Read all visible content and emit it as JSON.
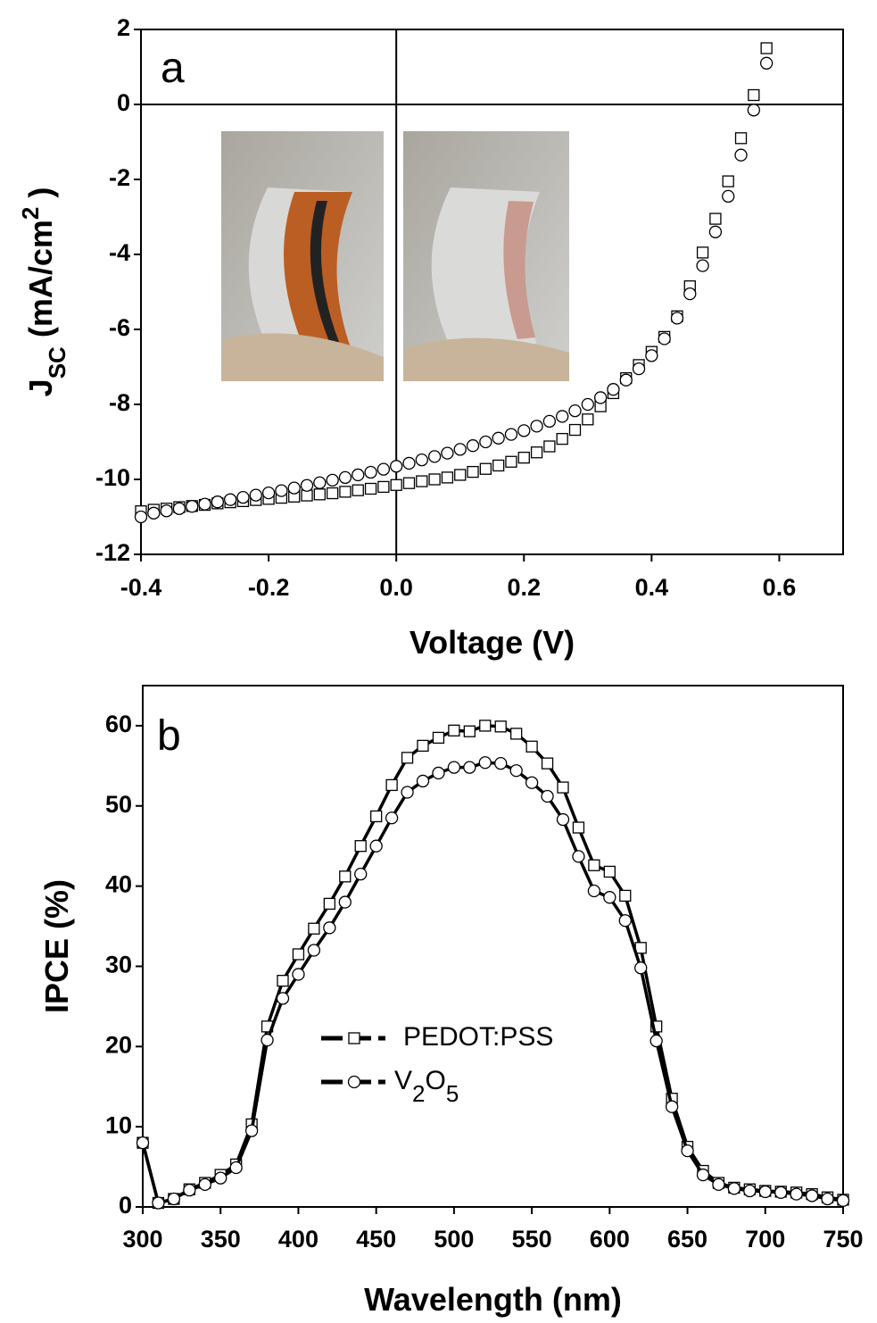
{
  "chart_data": [
    {
      "type": "scatter",
      "panel_label": "a",
      "xlabel": "Voltage (V)",
      "ylabel": [
        "J",
        "SC",
        " (mA/cm",
        "2",
        " )"
      ],
      "xlim": [
        -0.4,
        0.7
      ],
      "ylim": [
        -12,
        2
      ],
      "xticks": [
        -0.4,
        -0.2,
        {
          "value": 0,
          "label": "0.0"
        },
        0.2,
        0.4,
        0.6
      ],
      "yticks": [
        2,
        0,
        -2,
        -4,
        -6,
        -8,
        -10,
        -12
      ],
      "zero_lines": true,
      "line": false,
      "x": [
        -0.4,
        -0.38,
        -0.36,
        -0.34,
        -0.32,
        -0.3,
        -0.28,
        -0.26,
        -0.24,
        -0.22,
        -0.2,
        -0.18,
        -0.16,
        -0.14,
        -0.12,
        -0.1,
        -0.08,
        -0.06,
        -0.04,
        -0.02,
        0,
        0.02,
        0.04,
        0.06,
        0.08,
        0.1,
        0.12,
        0.14,
        0.16,
        0.18,
        0.2,
        0.22,
        0.24,
        0.26,
        0.28,
        0.3,
        0.32,
        0.34,
        0.36,
        0.38,
        0.4,
        0.42,
        0.44,
        0.46,
        0.48,
        0.5,
        0.52,
        0.54,
        0.56,
        0.58
      ],
      "series": [
        {
          "marker": "square",
          "color": "#000000",
          "values": [
            -10.85,
            -10.81,
            -10.78,
            -10.74,
            -10.71,
            -10.68,
            -10.64,
            -10.61,
            -10.58,
            -10.55,
            -10.52,
            -10.49,
            -10.46,
            -10.43,
            -10.4,
            -10.37,
            -10.33,
            -10.29,
            -10.25,
            -10.2,
            -10.15,
            -10.1,
            -10.05,
            -10.0,
            -9.95,
            -9.88,
            -9.8,
            -9.72,
            -9.63,
            -9.53,
            -9.42,
            -9.28,
            -9.12,
            -8.92,
            -8.68,
            -8.4,
            -8.05,
            -7.7,
            -7.3,
            -6.95,
            -6.6,
            -6.2,
            -5.65,
            -4.85,
            -3.95,
            -3.05,
            -2.05,
            -0.9,
            0.25,
            1.5
          ]
        },
        {
          "marker": "circle",
          "color": "#000000",
          "values": [
            -11.0,
            -10.9,
            -10.84,
            -10.78,
            -10.72,
            -10.66,
            -10.6,
            -10.54,
            -10.48,
            -10.42,
            -10.36,
            -10.3,
            -10.23,
            -10.16,
            -10.09,
            -10.02,
            -9.95,
            -9.88,
            -9.81,
            -9.73,
            -9.65,
            -9.57,
            -9.48,
            -9.39,
            -9.3,
            -9.2,
            -9.1,
            -9.0,
            -8.9,
            -8.8,
            -8.7,
            -8.58,
            -8.45,
            -8.32,
            -8.17,
            -8.0,
            -7.82,
            -7.6,
            -7.35,
            -7.05,
            -6.7,
            -6.25,
            -5.7,
            -5.05,
            -4.3,
            -3.4,
            -2.45,
            -1.35,
            -0.15,
            1.1
          ]
        }
      ]
    },
    {
      "type": "line",
      "panel_label": "b",
      "xlabel": "Wavelength (nm)",
      "ylabel": [
        "IPCE (%)"
      ],
      "xlim": [
        300,
        750
      ],
      "ylim": [
        0,
        65
      ],
      "xticks": [
        300,
        350,
        400,
        450,
        500,
        550,
        600,
        650,
        700,
        750
      ],
      "yticks": [
        0,
        10,
        20,
        30,
        40,
        50,
        60
      ],
      "zero_lines": false,
      "line": true,
      "x": [
        300,
        310,
        320,
        330,
        340,
        350,
        360,
        370,
        380,
        390,
        400,
        410,
        420,
        430,
        440,
        450,
        460,
        470,
        480,
        490,
        500,
        510,
        520,
        530,
        540,
        550,
        560,
        570,
        580,
        590,
        600,
        610,
        620,
        630,
        640,
        650,
        660,
        670,
        680,
        690,
        700,
        710,
        720,
        730,
        740,
        750
      ],
      "series": [
        {
          "name": "PEDOT:PSS",
          "marker": "square",
          "color": "#000000",
          "values": [
            8,
            0.5,
            1,
            2.2,
            3,
            4,
            5.3,
            10.3,
            22.5,
            28.2,
            31.5,
            34.7,
            37.8,
            41.2,
            45,
            48.7,
            52.6,
            56,
            57.5,
            58.5,
            59.4,
            59.3,
            60,
            59.9,
            59,
            57.4,
            55.3,
            52.3,
            47.3,
            42.6,
            41.8,
            38.8,
            32.3,
            22.5,
            13.5,
            7.5,
            4.5,
            3,
            2.4,
            2.2,
            2.0,
            1.9,
            1.8,
            1.6,
            1.2,
            0.9
          ]
        },
        {
          "name": "V2O5",
          "marker": "circle",
          "color": "#000000",
          "values": [
            8,
            0.5,
            1,
            2.1,
            2.8,
            3.6,
            4.9,
            9.5,
            20.8,
            26,
            29,
            32,
            34.8,
            38,
            41.5,
            45,
            48.5,
            51.7,
            53.1,
            54.1,
            54.8,
            54.8,
            55.4,
            55.3,
            54.4,
            52.9,
            51.2,
            48.3,
            43.7,
            39.4,
            38.6,
            35.7,
            29.8,
            20.7,
            12.5,
            7,
            4,
            2.8,
            2.3,
            2.0,
            1.9,
            1.8,
            1.6,
            1.4,
            1.0,
            0.8
          ]
        }
      ]
    }
  ]
}
